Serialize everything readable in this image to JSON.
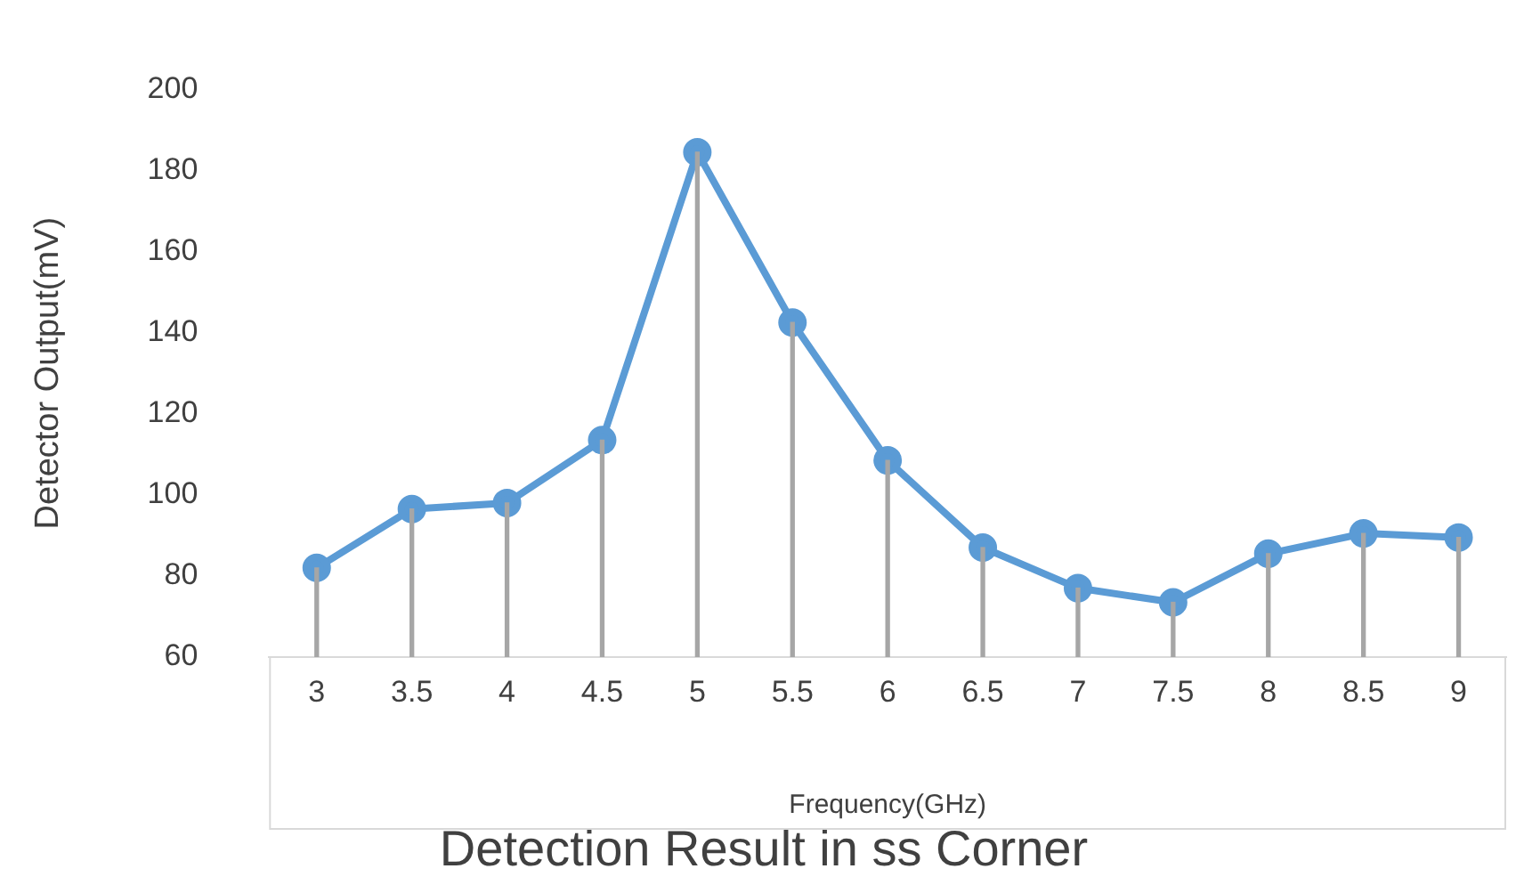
{
  "chart_data": {
    "type": "line",
    "title": "Detection Result in ss Corner",
    "xlabel": "Frequency(GHz)",
    "ylabel": "Detector Output(mV)",
    "categories": [
      "3",
      "3.5",
      "4",
      "4.5",
      "5",
      "5.5",
      "6",
      "6.5",
      "7",
      "7.5",
      "8",
      "8.5",
      "9"
    ],
    "series": [
      {
        "type": "bar",
        "color": "#a6a6a6",
        "values": [
          82,
          96.5,
          98,
          113.5,
          184.5,
          142.5,
          108.5,
          87,
          77,
          73.5,
          85.5,
          90.5,
          89.5
        ]
      },
      {
        "color": "#5b9bd5",
        "values": [
          82,
          96.5,
          98,
          113.5,
          184.5,
          142.5,
          108.5,
          87,
          77,
          73.5,
          85.5,
          90.5,
          89.5
        ]
      }
    ],
    "ylim": [
      60,
      200
    ],
    "yticks": [
      60,
      80,
      100,
      120,
      140,
      160,
      180,
      200
    ],
    "grid": false,
    "legend": false,
    "marker": "circle",
    "line_style": "solid"
  }
}
